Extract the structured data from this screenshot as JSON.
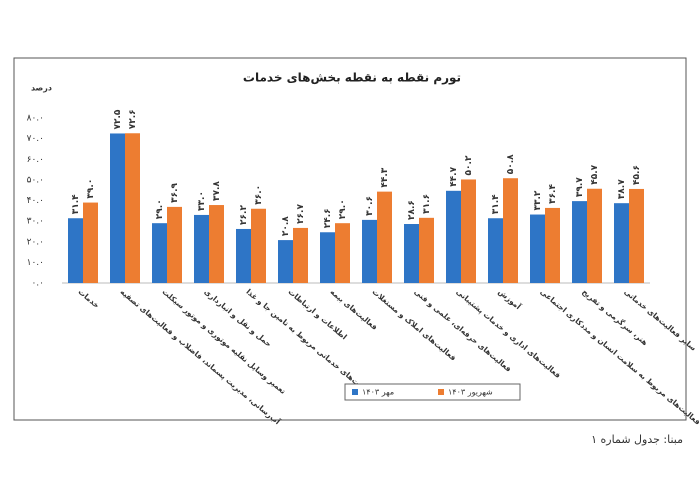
{
  "chart_data": {
    "type": "bar",
    "title": "تورم نقطه به نقطه بخش‌های خدمات",
    "y_label": "درصد",
    "categories": [
      "خدمات",
      "آب‌رسانی، مدیریت پسماند، فاضلاب و فعالیت‌های تصفیه",
      "تعمیر وسایل نقلیه موتوری و موتور سیکلت",
      "حمل و نقل و انبارداری",
      "فعالیت‌های خدماتی مربوط به تامین جا و غذا",
      "اطلاعات و ارتباطات",
      "فعالیت‌های بیمه",
      "فعالیت‌های املاک و مستغلات",
      "فعالیت‌های حرفه‌ای، علمی و فنی",
      "فعالیت‌های اداری و خدمات پشتیبانی",
      "آموزش",
      "فعالیت‌های مربوط به سلامت انسان و مددکاری اجتماعی",
      "هنر، سرگرمی و تفریح",
      "سایر فعالیت‌های خدماتی"
    ],
    "series": [
      {
        "name": "مهر ۱۴۰۳",
        "color": "#2e75c6",
        "values": [
          31.4,
          72.5,
          29.0,
          33.0,
          26.2,
          20.8,
          24.6,
          30.6,
          28.6,
          44.7,
          31.4,
          33.2,
          39.7,
          38.7
        ],
        "value_labels": [
          "۳۱.۴",
          "۷۲.۵",
          "۲۹.۰",
          "۳۳.۰",
          "۲۶.۲",
          "۲۰.۸",
          "۲۴.۶",
          "۳۰.۶",
          "۲۸.۶",
          "۴۴.۷",
          "۳۱.۴",
          "۳۳.۲",
          "۳۹.۷",
          "۳۸.۷"
        ]
      },
      {
        "name": "شهریور ۱۴۰۳",
        "color": "#ed7d31",
        "values": [
          39.0,
          72.6,
          36.9,
          37.8,
          36.0,
          26.7,
          29.0,
          44.3,
          31.6,
          50.2,
          50.8,
          36.4,
          45.7,
          45.6
        ],
        "value_labels": [
          "۳۹.۰",
          "۷۲.۶",
          "۳۶.۹",
          "۳۷.۸",
          "۳۶.۰",
          "۲۶.۷",
          "۲۹.۰",
          "۴۴.۳",
          "۳۱.۶",
          "۵۰.۲",
          "۵۰.۸",
          "۳۶.۴",
          "۴۵.۷",
          "۴۵.۶"
        ]
      }
    ],
    "ylim": [
      0,
      80
    ],
    "yticks": [
      {
        "value": 0,
        "label": "۰.۰"
      },
      {
        "value": 10,
        "label": "۱۰.۰"
      },
      {
        "value": 20,
        "label": "۲۰.۰"
      },
      {
        "value": 30,
        "label": "۳۰.۰"
      },
      {
        "value": 40,
        "label": "۴۰.۰"
      },
      {
        "value": 50,
        "label": "۵۰.۰"
      },
      {
        "value": 60,
        "label": "۶۰.۰"
      },
      {
        "value": 70,
        "label": "۷۰.۰"
      },
      {
        "value": 80,
        "label": "۸۰.۰"
      }
    ],
    "grid": false,
    "legend": "bottom",
    "source": "مبنا: جدول شماره ۱"
  }
}
